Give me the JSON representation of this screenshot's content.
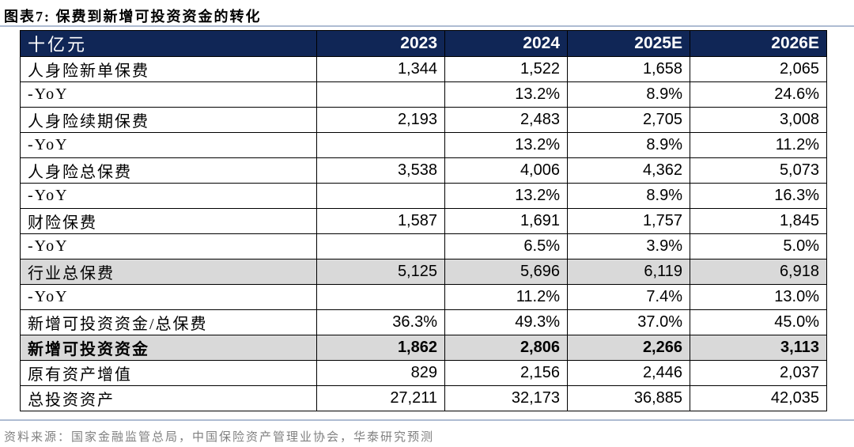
{
  "title": "图表7:  保费到新增可投资资金的转化",
  "table": {
    "unit_header": "十亿元",
    "columns": [
      "2023",
      "2024",
      "2025E",
      "2026E"
    ],
    "rows": [
      {
        "label": "人身险新单保费",
        "values": [
          "1,344",
          "1,522",
          "1,658",
          "2,065"
        ],
        "style": "normal"
      },
      {
        "label": "-YoY",
        "values": [
          "",
          "13.2%",
          "8.9%",
          "24.6%"
        ],
        "style": "normal"
      },
      {
        "label": "人身险续期保费",
        "values": [
          "2,193",
          "2,483",
          "2,705",
          "3,008"
        ],
        "style": "normal"
      },
      {
        "label": "-YoY",
        "values": [
          "",
          "13.2%",
          "8.9%",
          "11.2%"
        ],
        "style": "normal"
      },
      {
        "label": "人身险总保费",
        "values": [
          "3,538",
          "4,006",
          "4,362",
          "5,073"
        ],
        "style": "normal"
      },
      {
        "label": "-YoY",
        "values": [
          "",
          "13.2%",
          "8.9%",
          "16.3%"
        ],
        "style": "normal"
      },
      {
        "label": "财险保费",
        "values": [
          "1,587",
          "1,691",
          "1,757",
          "1,845"
        ],
        "style": "normal"
      },
      {
        "label": "-YoY",
        "values": [
          "",
          "6.5%",
          "3.9%",
          "5.0%"
        ],
        "style": "normal"
      },
      {
        "label": "行业总保费",
        "values": [
          "5,125",
          "5,696",
          "6,119",
          "6,918"
        ],
        "style": "gray"
      },
      {
        "label": "-YoY",
        "values": [
          "",
          "11.2%",
          "7.4%",
          "13.0%"
        ],
        "style": "normal"
      },
      {
        "label": "新增可投资资金/总保费",
        "values": [
          "36.3%",
          "49.3%",
          "37.0%",
          "45.0%"
        ],
        "style": "normal"
      },
      {
        "label": "新增可投资资金",
        "values": [
          "1,862",
          "2,806",
          "2,266",
          "3,113"
        ],
        "style": "gray-bold"
      },
      {
        "label": "原有资产增值",
        "values": [
          "829",
          "2,156",
          "2,446",
          "2,037"
        ],
        "style": "normal"
      },
      {
        "label": "总投资资产",
        "values": [
          "27,211",
          "32,173",
          "36,885",
          "42,035"
        ],
        "style": "normal"
      }
    ]
  },
  "source": "资料来源：国家金融监管总局，中国保险资产管理业协会，华泰研究预测",
  "colors": {
    "header_bg": "#102656",
    "header_text": "#ffffff",
    "highlight_row_bg": "#d9d9d9",
    "border_color": "#000000",
    "divider_color": "#aebcd2",
    "source_text": "#808080",
    "title_text": "#000000"
  }
}
